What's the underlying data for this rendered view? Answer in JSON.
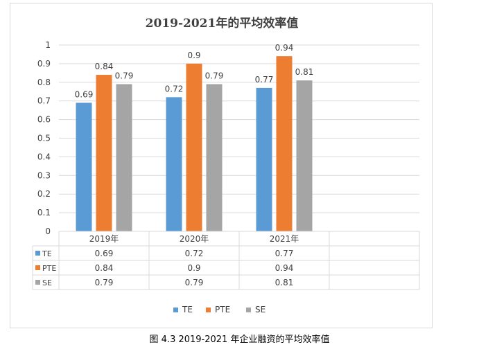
{
  "chart_data": {
    "type": "bar",
    "title": "2019-2021年的平均效率值",
    "categories": [
      "2019年",
      "2020年",
      "2021年"
    ],
    "series": [
      {
        "name": "TE",
        "values": [
          0.69,
          0.72,
          0.77
        ],
        "color": "#5b9bd5"
      },
      {
        "name": "PTE",
        "values": [
          0.84,
          0.9,
          0.94
        ],
        "color": "#ed7d31"
      },
      {
        "name": "SE",
        "values": [
          0.79,
          0.79,
          0.81
        ],
        "color": "#a5a5a5"
      }
    ],
    "ylim": [
      0,
      1
    ],
    "yticks": [
      "0",
      "0.1",
      "0.2",
      "0.3",
      "0.4",
      "0.5",
      "0.6",
      "0.7",
      "0.8",
      "0.9",
      "1"
    ],
    "data_table": true,
    "legend_position": "bottom",
    "grid": true
  },
  "caption": "图 4.3 2019-2021 年企业融资的平均效率值"
}
